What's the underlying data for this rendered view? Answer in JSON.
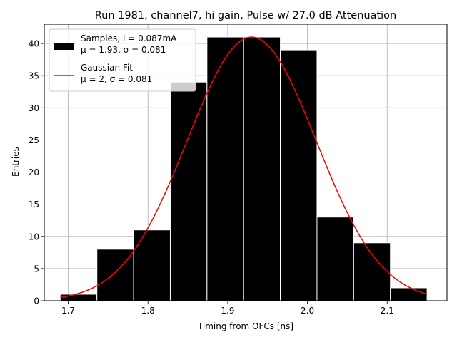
{
  "chart_data": {
    "type": "bar",
    "title": "Run 1981, channel7, hi gain, Pulse w/ 27.0 dB Attenuation",
    "xlabel": "Timing from OFCs [ns]",
    "ylabel": "Entries",
    "xlim": [
      1.67,
      2.175
    ],
    "ylim": [
      0,
      43
    ],
    "xticks": [
      1.7,
      1.8,
      1.9,
      2.0,
      2.1
    ],
    "xtick_labels": [
      "1.7",
      "1.8",
      "1.9",
      "2.0",
      "2.1"
    ],
    "yticks": [
      0,
      5,
      10,
      15,
      20,
      25,
      30,
      35,
      40
    ],
    "ytick_labels": [
      "0",
      "5",
      "10",
      "15",
      "20",
      "25",
      "30",
      "35",
      "40"
    ],
    "grid": true,
    "legend_position": "top-left",
    "histogram": {
      "bin_edges": [
        1.69,
        1.736,
        1.782,
        1.828,
        1.874,
        1.92,
        1.966,
        2.012,
        2.058,
        2.104,
        2.15
      ],
      "counts": [
        1,
        8,
        11,
        34,
        41,
        41,
        39,
        13,
        9,
        2
      ],
      "color": "#000000",
      "edge_color": "#ffffff"
    },
    "fit": {
      "mu": 1.93,
      "sigma": 0.081,
      "amplitude": 41,
      "x_range": [
        1.69,
        2.15
      ],
      "color": "#ff0000"
    },
    "legend": [
      {
        "kind": "patch",
        "color": "#000000",
        "lines": [
          "Samples, I = 0.087mA",
          "μ = 1.93, σ = 0.081"
        ]
      },
      {
        "kind": "line",
        "color": "#ff0000",
        "lines": [
          "Gaussian Fit",
          "μ = 2, σ = 0.081"
        ]
      }
    ]
  }
}
